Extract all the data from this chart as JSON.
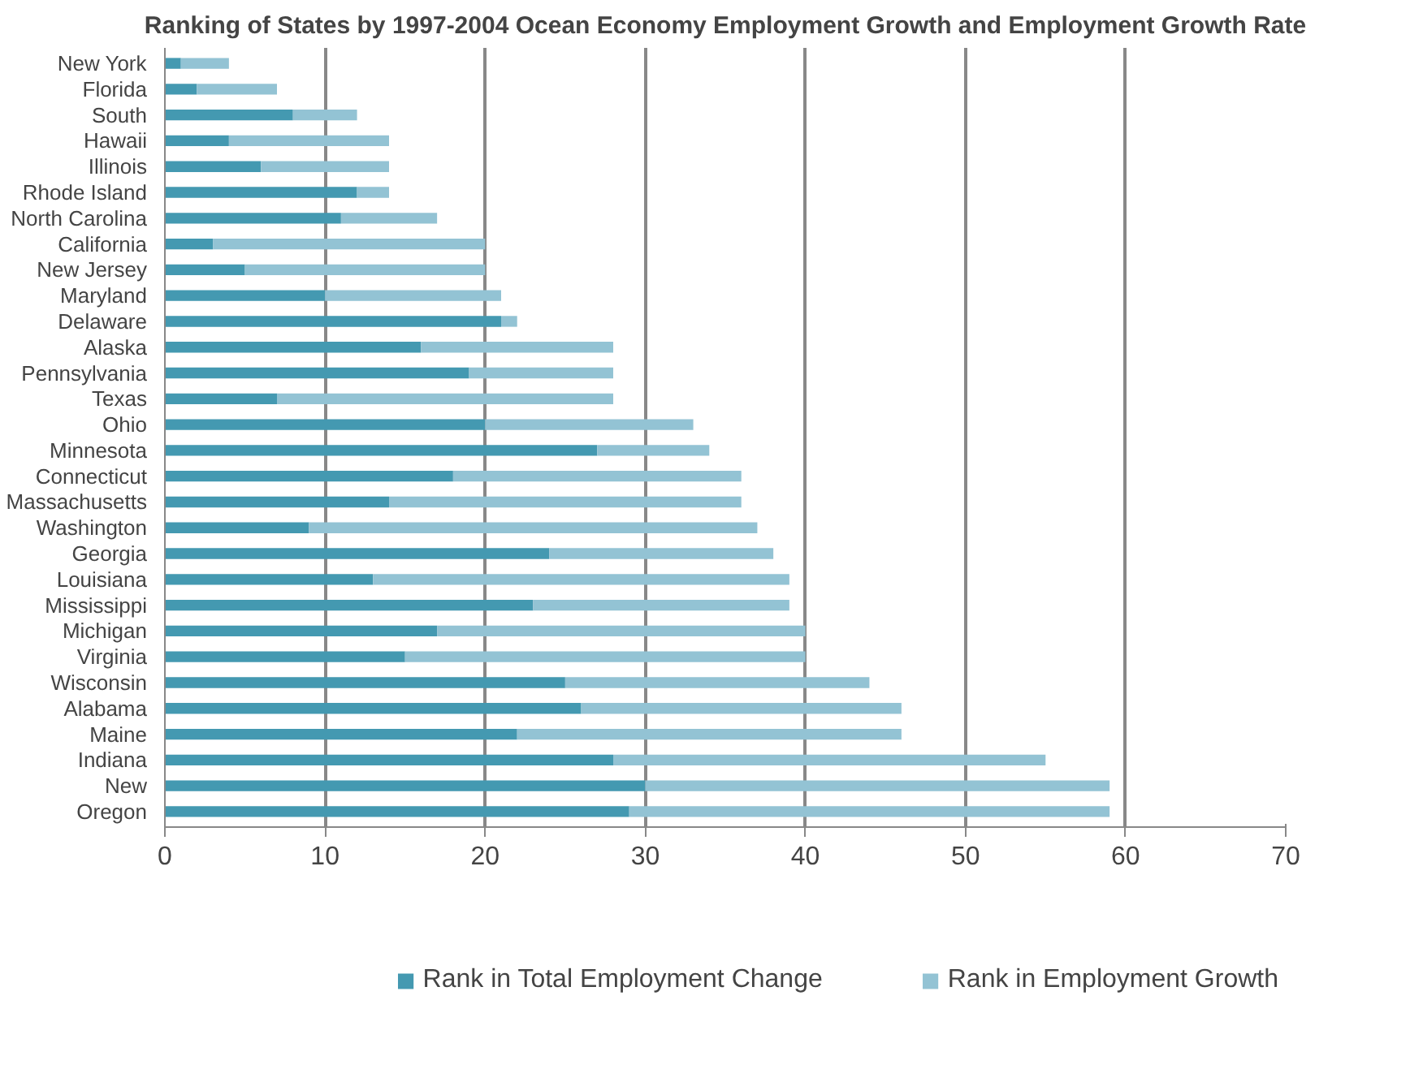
{
  "chart_data": {
    "type": "bar",
    "orientation": "horizontal",
    "stacked": true,
    "title": "Ranking of States by 1997-2004 Ocean Economy Employment Growth and Employment Growth Rate",
    "categories": [
      "New York",
      "Florida",
      "South",
      "Hawaii",
      "Illinois",
      "Rhode Island",
      "North Carolina",
      "California",
      "New Jersey",
      "Maryland",
      "Delaware",
      "Alaska",
      "Pennsylvania",
      "Texas",
      "Ohio",
      "Minnesota",
      "Connecticut",
      "Massachusetts",
      "Washington",
      "Georgia",
      "Louisiana",
      "Mississippi",
      "Michigan",
      "Virginia",
      "Wisconsin",
      "Alabama",
      "Maine",
      "Indiana",
      "New",
      "Oregon"
    ],
    "series": [
      {
        "name": "Rank in Total Employment Change",
        "color": "#4499b1",
        "values": [
          1,
          2,
          8,
          4,
          6,
          12,
          11,
          3,
          5,
          10,
          21,
          16,
          19,
          7,
          20,
          27,
          18,
          14,
          9,
          24,
          13,
          23,
          17,
          15,
          25,
          26,
          22,
          28,
          30,
          29
        ]
      },
      {
        "name": "Rank in Employment Growth",
        "color": "#93c3d4",
        "values": [
          3,
          5,
          4,
          10,
          8,
          2,
          6,
          17,
          15,
          11,
          1,
          12,
          9,
          21,
          13,
          7,
          18,
          22,
          28,
          14,
          26,
          16,
          23,
          25,
          19,
          20,
          24,
          27,
          29,
          30
        ]
      }
    ],
    "xlim": [
      0,
      70
    ],
    "xticks": [
      0,
      10,
      20,
      30,
      40,
      50,
      60,
      70
    ],
    "grid": "x",
    "legend": "bottom"
  }
}
